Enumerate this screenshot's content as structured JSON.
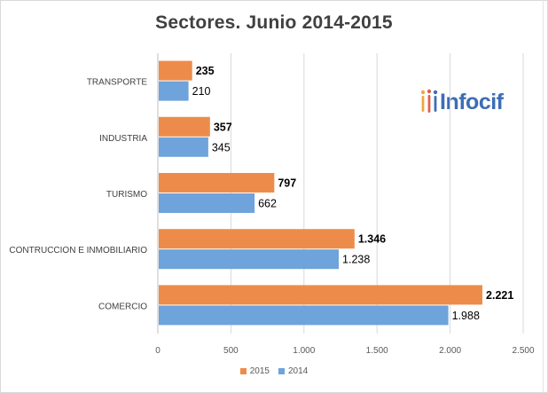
{
  "chart_data": {
    "type": "bar",
    "orientation": "horizontal",
    "title": "Sectores. Junio 2014-2015",
    "categories": [
      "TRANSPORTE",
      "INDUSTRIA",
      "TURISMO",
      "CONTRUCCION E INMOBILIARIO",
      "COMERCIO"
    ],
    "series": [
      {
        "name": "2015",
        "color": "#ed8c4a",
        "values": [
          235,
          357,
          797,
          1346,
          2221
        ],
        "labels": [
          "235",
          "357",
          "797",
          "1.346",
          "2.221"
        ],
        "label_bold": true
      },
      {
        "name": "2014",
        "color": "#6ea3db",
        "values": [
          210,
          345,
          662,
          1238,
          1988
        ],
        "labels": [
          "210",
          "345",
          "662",
          "1.238",
          "1.988"
        ],
        "label_bold": false
      }
    ],
    "xlim": [
      0,
      2500
    ],
    "xticks": [
      0,
      500,
      1000,
      1500,
      2000,
      2500
    ],
    "xtick_labels": [
      "0",
      "500",
      "1.000",
      "1.500",
      "2.000",
      "2.500"
    ],
    "grid": true,
    "legend_position": "bottom"
  },
  "logo": {
    "text": "Infocif",
    "icon": "people-figures-icon"
  },
  "colors": {
    "grid": "#d9d9d9",
    "axis": "#bfbfbf",
    "title": "#404040"
  }
}
